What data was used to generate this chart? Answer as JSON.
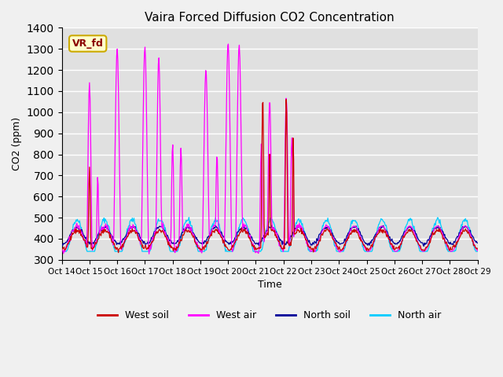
{
  "title": "Vaira Forced Diffusion CO2 Concentration",
  "xlabel": "Time",
  "ylabel": "CO2 (ppm)",
  "ylim": [
    300,
    1400
  ],
  "yticks": [
    300,
    400,
    500,
    600,
    700,
    800,
    900,
    1000,
    1100,
    1200,
    1300,
    1400
  ],
  "xtick_labels": [
    "Oct 14",
    "Oct 15",
    "Oct 16",
    "Oct 17",
    "Oct 18",
    "Oct 19",
    "Oct 20",
    "Oct 21",
    "Oct 22",
    "Oct 23",
    "Oct 24",
    "Oct 25",
    "Oct 26",
    "Oct 27",
    "Oct 28",
    "Oct 29"
  ],
  "bg_color": "#e0e0e0",
  "grid_color": "#ffffff",
  "west_soil_color": "#cc0000",
  "west_air_color": "#ff00ff",
  "north_soil_color": "#000099",
  "north_air_color": "#00ccff",
  "legend_label_box": "VR_fd",
  "legend_labels": [
    "West soil",
    "West air",
    "North soil",
    "North air"
  ],
  "num_days": 15
}
